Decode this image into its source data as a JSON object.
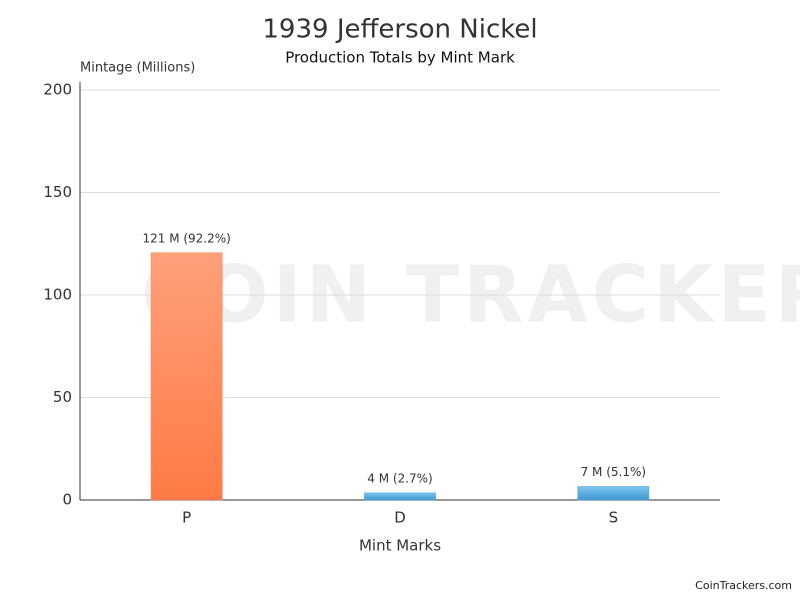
{
  "chart_data": {
    "type": "bar",
    "title": "1939 Jefferson Nickel",
    "subtitle": "Production Totals by Mint Mark",
    "y_label": "Mintage (Millions)",
    "x_label": "Mint Marks",
    "categories": [
      "P",
      "D",
      "S"
    ],
    "values": [
      120.6,
      3.5,
      6.6
    ],
    "value_labels": [
      "121 M (92.2%)",
      "4 M (2.7%)",
      "7 M (5.1%)"
    ],
    "colors": [
      "#ff8255",
      "#4ea6dc",
      "#4ea6dc"
    ],
    "ylim": [
      0,
      200
    ],
    "yticks": [
      0,
      50,
      100,
      150,
      200
    ],
    "grid": true,
    "watermark": "COIN TRACKERS",
    "credit": "CoinTrackers.com"
  }
}
